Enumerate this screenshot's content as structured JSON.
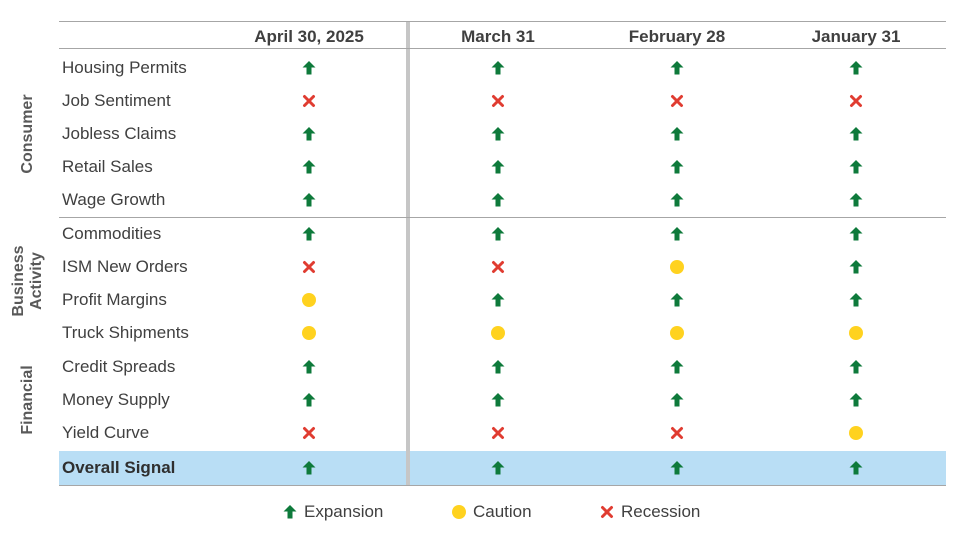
{
  "colors": {
    "expansion": "#0e7a3b",
    "caution": "#ffd21f",
    "recession": "#e03c31",
    "overall_band": "#b9def5"
  },
  "chart_data": {
    "type": "table",
    "columns": [
      "April 30, 2025",
      "March 31",
      "February 28",
      "January 31"
    ],
    "groups": [
      {
        "label": "Consumer",
        "rows": [
          0,
          1,
          2,
          3,
          4
        ]
      },
      {
        "label": "Business\nActivity",
        "rows": [
          5,
          6,
          7,
          8
        ]
      },
      {
        "label": "Financial",
        "rows": [
          9,
          10,
          11
        ]
      }
    ],
    "rows": [
      {
        "label": "Housing Permits",
        "signals": [
          "expansion",
          "expansion",
          "expansion",
          "expansion"
        ]
      },
      {
        "label": "Job Sentiment",
        "signals": [
          "recession",
          "recession",
          "recession",
          "recession"
        ]
      },
      {
        "label": "Jobless Claims",
        "signals": [
          "expansion",
          "expansion",
          "expansion",
          "expansion"
        ]
      },
      {
        "label": "Retail Sales",
        "signals": [
          "expansion",
          "expansion",
          "expansion",
          "expansion"
        ]
      },
      {
        "label": "Wage Growth",
        "signals": [
          "expansion",
          "expansion",
          "expansion",
          "expansion"
        ]
      },
      {
        "label": "Commodities",
        "signals": [
          "expansion",
          "expansion",
          "expansion",
          "expansion"
        ]
      },
      {
        "label": "ISM New Orders",
        "signals": [
          "recession",
          "recession",
          "caution",
          "expansion"
        ]
      },
      {
        "label": "Profit Margins",
        "signals": [
          "caution",
          "expansion",
          "expansion",
          "expansion"
        ]
      },
      {
        "label": "Truck Shipments",
        "signals": [
          "caution",
          "caution",
          "caution",
          "caution"
        ]
      },
      {
        "label": "Credit Spreads",
        "signals": [
          "expansion",
          "expansion",
          "expansion",
          "expansion"
        ]
      },
      {
        "label": "Money Supply",
        "signals": [
          "expansion",
          "expansion",
          "expansion",
          "expansion"
        ]
      },
      {
        "label": "Yield Curve",
        "signals": [
          "recession",
          "recession",
          "recession",
          "caution"
        ]
      }
    ],
    "overall": {
      "label": "Overall Signal",
      "signals": [
        "expansion",
        "expansion",
        "expansion",
        "expansion"
      ]
    },
    "legend": [
      {
        "key": "expansion",
        "label": "Expansion"
      },
      {
        "key": "caution",
        "label": "Caution"
      },
      {
        "key": "recession",
        "label": "Recession"
      }
    ]
  }
}
